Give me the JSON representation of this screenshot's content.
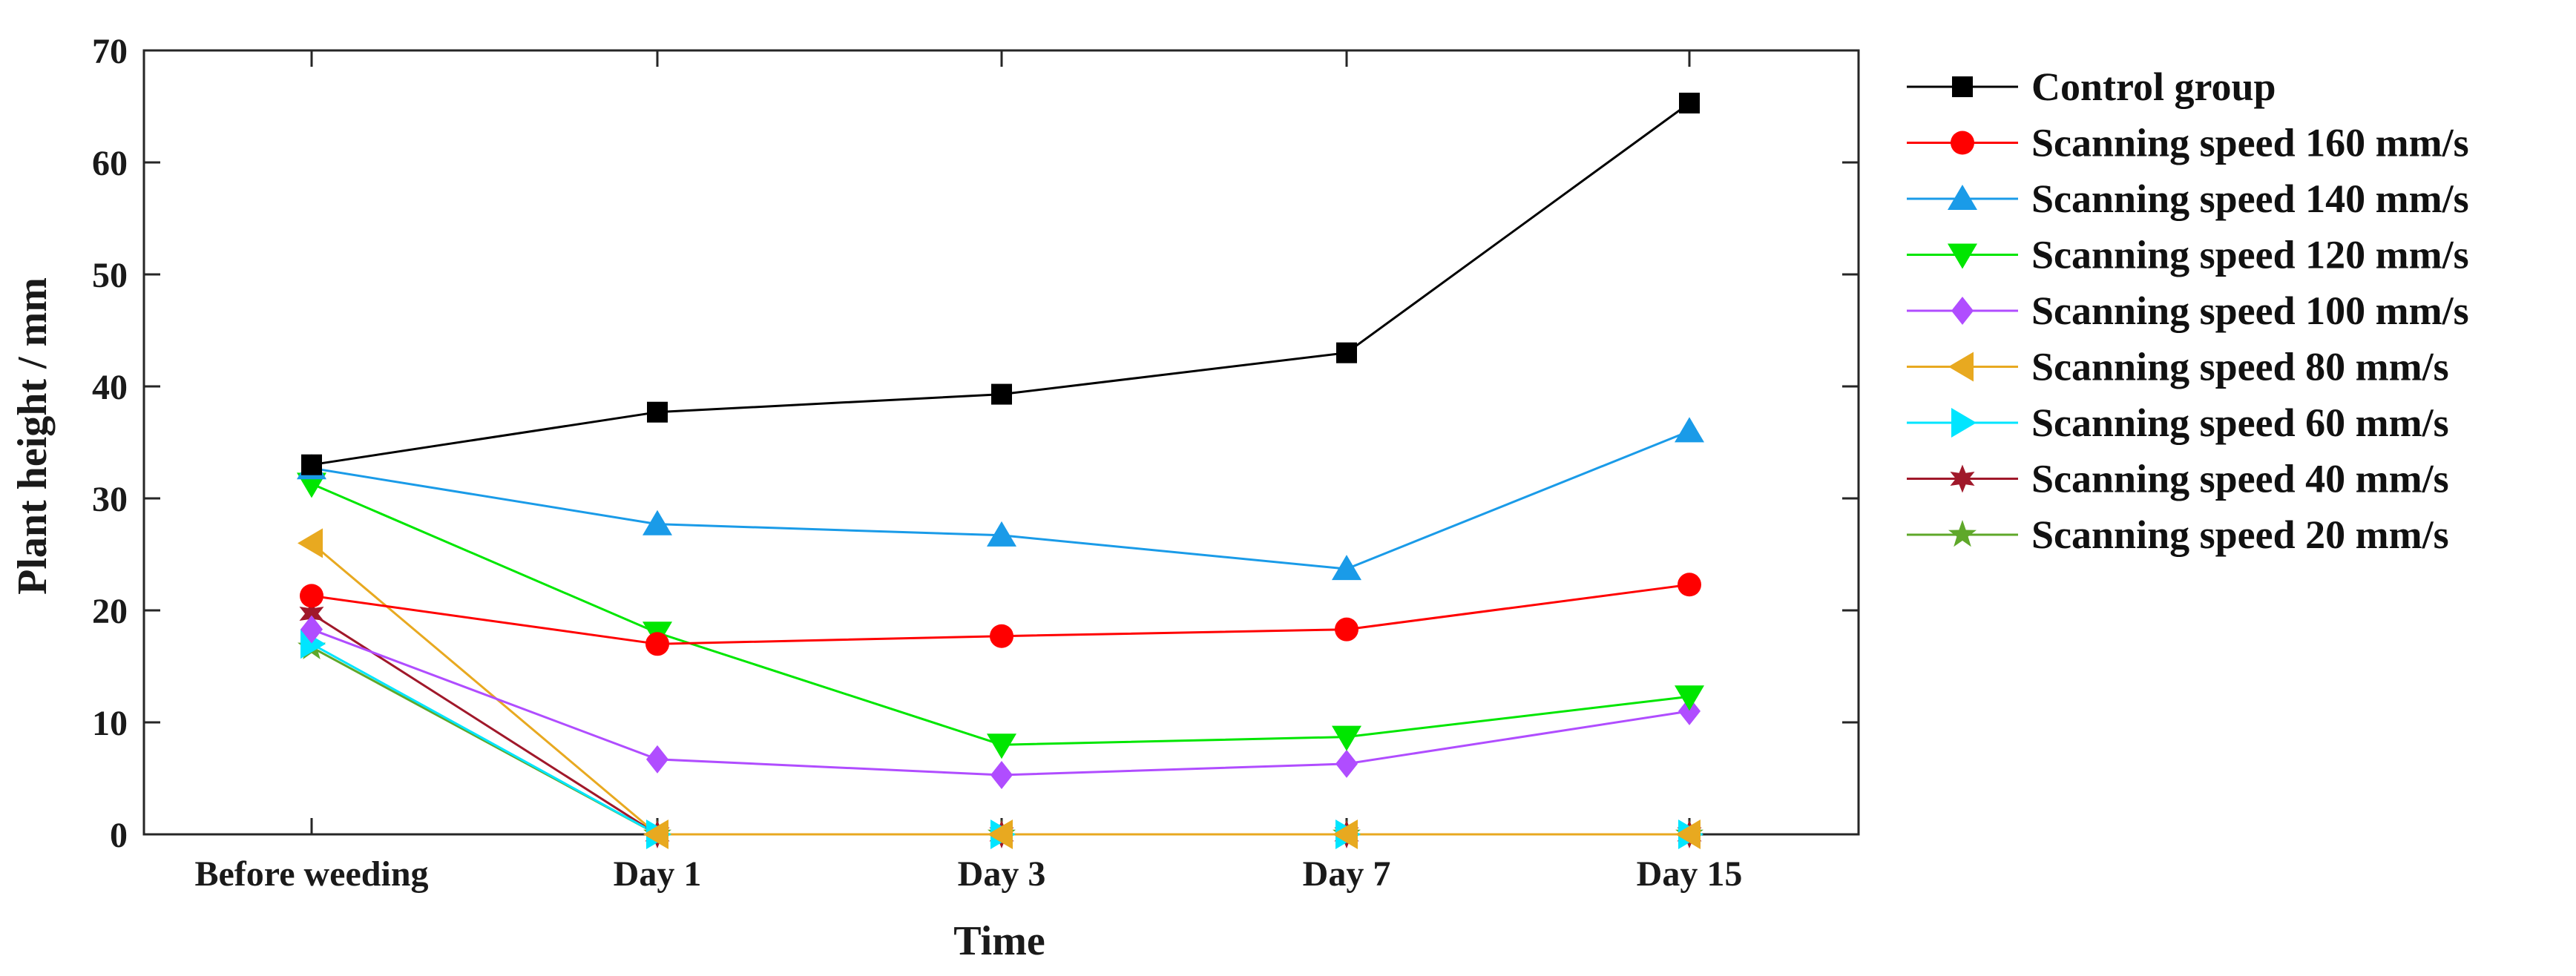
{
  "chart_data": {
    "type": "line",
    "title": "",
    "xlabel": "Time",
    "ylabel": "Plant height / mm",
    "ylim": [
      0,
      70
    ],
    "yticks": [
      0,
      10,
      20,
      30,
      40,
      50,
      60,
      70
    ],
    "categories": [
      "Before weeding",
      "Day 1",
      "Day 3",
      "Day 7",
      "Day 15"
    ],
    "legend_position": "outside-right",
    "grid": false,
    "series": [
      {
        "name": "Control group",
        "color": "#000000",
        "marker": "square",
        "values": [
          33.0,
          37.7,
          39.3,
          43.0,
          65.3
        ]
      },
      {
        "name": "Scanning speed 160 mm/s",
        "color": "#ff0000",
        "marker": "circle",
        "values": [
          21.3,
          17.0,
          17.7,
          18.3,
          22.3
        ]
      },
      {
        "name": "Scanning speed 140 mm/s",
        "color": "#1a9be8",
        "marker": "triangle-up",
        "values": [
          32.7,
          27.7,
          26.7,
          23.7,
          36.0
        ]
      },
      {
        "name": "Scanning speed 120 mm/s",
        "color": "#00e600",
        "marker": "triangle-down",
        "values": [
          31.3,
          18.0,
          8.0,
          8.7,
          12.3
        ]
      },
      {
        "name": "Scanning speed 100 mm/s",
        "color": "#b04dff",
        "marker": "diamond",
        "values": [
          18.3,
          6.7,
          5.3,
          6.3,
          11.0
        ]
      },
      {
        "name": "Scanning speed 80 mm/s",
        "color": "#e8a920",
        "marker": "triangle-left",
        "values": [
          26.0,
          0,
          0,
          0,
          0
        ]
      },
      {
        "name": "Scanning speed 60 mm/s",
        "color": "#00e5ff",
        "marker": "triangle-right",
        "values": [
          17.0,
          0,
          0,
          0,
          0
        ]
      },
      {
        "name": "Scanning speed 40 mm/s",
        "color": "#a0182a",
        "marker": "hexagram",
        "values": [
          19.7,
          0,
          0,
          0,
          0
        ]
      },
      {
        "name": "Scanning speed 20 mm/s",
        "color": "#5fa82a",
        "marker": "pentagram",
        "values": [
          16.7,
          0,
          0,
          0,
          0
        ]
      }
    ]
  }
}
